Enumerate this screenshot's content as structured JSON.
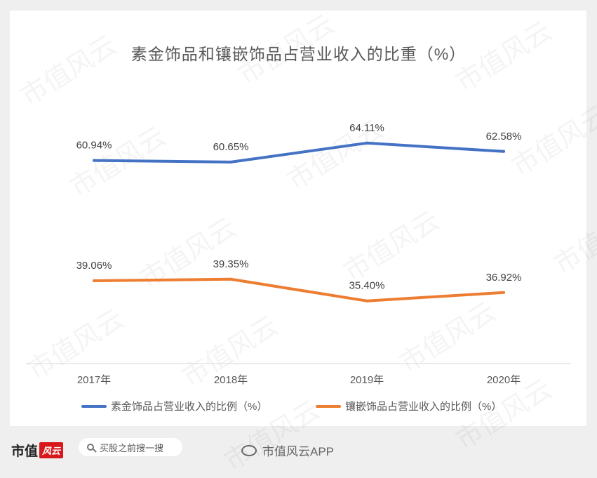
{
  "chart_data": {
    "type": "line",
    "title": "素金饰品和镶嵌饰品占营业收入的比重（%）",
    "categories": [
      "2017年",
      "2018年",
      "2019年",
      "2020年"
    ],
    "series": [
      {
        "name": "素金饰品占营业收入的比例（%）",
        "values": [
          60.94,
          60.65,
          64.11,
          62.58
        ],
        "labels": [
          "60.94%",
          "60.65%",
          "64.11%",
          "62.58%"
        ],
        "color": "#4472c4"
      },
      {
        "name": "镶嵌饰品占营业收入的比例（%）",
        "values": [
          39.06,
          39.35,
          35.4,
          36.92
        ],
        "labels": [
          "39.06%",
          "39.35%",
          "35.40%",
          "36.92%"
        ],
        "color": "#ed7d31"
      }
    ],
    "ylim": [
      24,
      72
    ],
    "grid": false,
    "legend": "bottom"
  },
  "footer": {
    "brand_text": "市值",
    "brand_mark": "风云",
    "search_placeholder": "买股之前搜一搜",
    "weibo_account": "市值风云APP",
    "weibo_icon": "weibo-icon"
  },
  "watermark": "市值风云"
}
